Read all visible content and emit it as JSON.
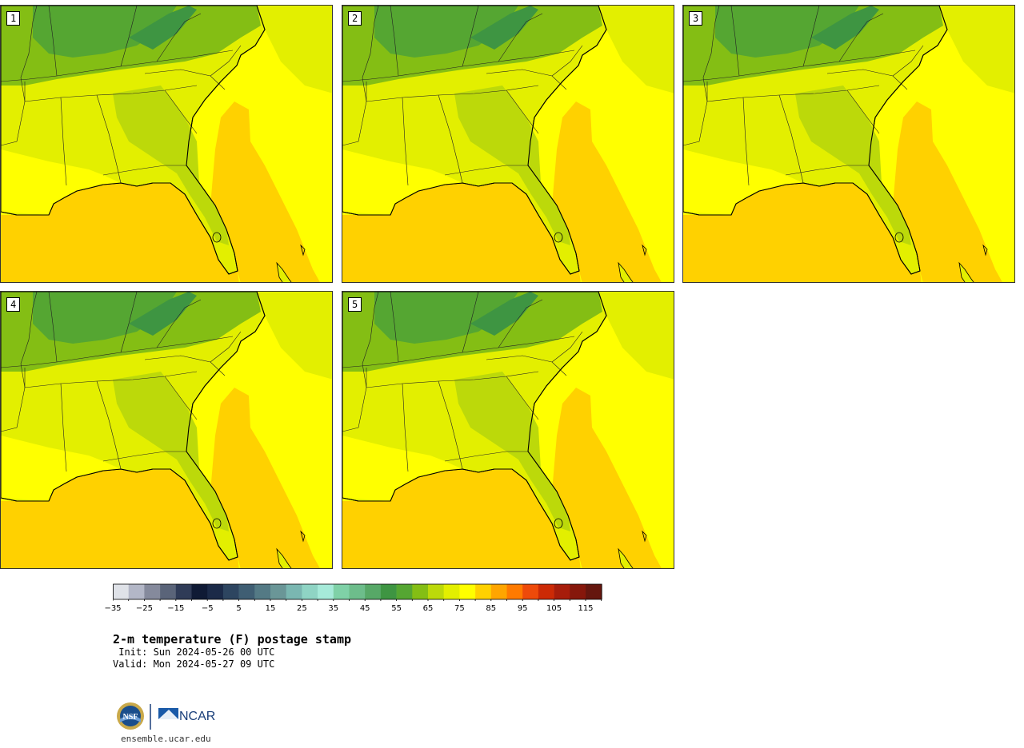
{
  "panels": [
    {
      "label": "1"
    },
    {
      "label": "2"
    },
    {
      "label": "3"
    },
    {
      "label": "4"
    },
    {
      "label": "5"
    }
  ],
  "colorbar": {
    "colors": [
      "#dfe2e8",
      "#b3b7c7",
      "#858a9c",
      "#5a6479",
      "#2f3b57",
      "#0f1a35",
      "#1b2a48",
      "#2d4560",
      "#3f5e73",
      "#547a85",
      "#6a9697",
      "#7ab7b1",
      "#8fd4c4",
      "#a6ead9",
      "#7fd1a7",
      "#6dbd8b",
      "#57a867",
      "#3e9542",
      "#55a632",
      "#84be14",
      "#bcd90a",
      "#e3ef00",
      "#ffff00",
      "#ffd100",
      "#ffa500",
      "#ff7a00",
      "#ee4a0a",
      "#cc2a06",
      "#a71d0b",
      "#86170b",
      "#65160e"
    ],
    "tick_labels": [
      "−35",
      "−25",
      "−15",
      "−5",
      "5",
      "15",
      "25",
      "35",
      "45",
      "55",
      "65",
      "75",
      "85",
      "95",
      "105",
      "115"
    ]
  },
  "title": "2-m temperature (F) postage stamp",
  "init": " Init: Sun 2024-05-26 00 UTC",
  "valid": "Valid: Mon 2024-05-27 09 UTC",
  "logo": {
    "left_text": "NSF",
    "right_text": "NCAR"
  },
  "url": "ensemble.ucar.edu"
}
